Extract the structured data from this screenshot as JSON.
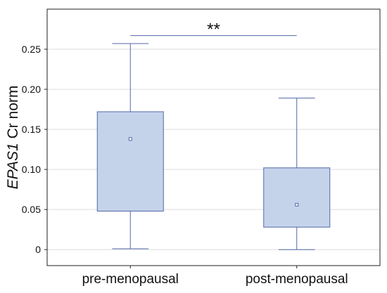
{
  "chart_data": {
    "type": "box",
    "title": "",
    "xlabel": "",
    "ylabel_italic": "EPAS1",
    "ylabel_rest": " Cr norm",
    "ylim": [
      -0.02,
      0.3
    ],
    "yticks": [
      0,
      0.05,
      0.1,
      0.15,
      0.2,
      0.25
    ],
    "ytick_labels": [
      "0",
      "0.05",
      "0.10",
      "0.15",
      "0.20",
      "0.25"
    ],
    "grid": true,
    "categories": [
      "pre-menopausal",
      "post-menopausal"
    ],
    "boxes": [
      {
        "category": "pre-menopausal",
        "whisker_low": 0.001,
        "q1": 0.048,
        "median": 0.138,
        "q3": 0.172,
        "whisker_high": 0.257
      },
      {
        "category": "post-menopausal",
        "whisker_low": 0.0,
        "q1": 0.028,
        "median": 0.056,
        "q3": 0.102,
        "whisker_high": 0.189
      }
    ],
    "significance": {
      "between": [
        "pre-menopausal",
        "post-menopausal"
      ],
      "label": "**",
      "y": 0.267
    },
    "colors": {
      "box_fill": "#c5d3ea",
      "box_stroke": "#5068a8",
      "grid": "#dcdcdc",
      "axis": "#222222"
    }
  }
}
